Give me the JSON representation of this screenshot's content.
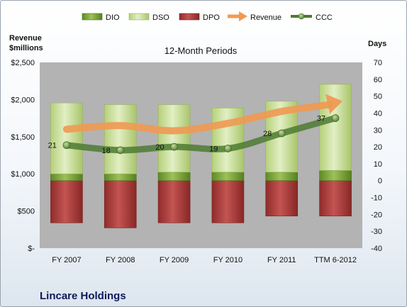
{
  "company": "Lincare Holdings",
  "chart_data": {
    "type": "bar",
    "title": "12-Month Periods",
    "left_axis_label_line1": "Revenue",
    "left_axis_label_line2": "$millions",
    "right_axis_label": "Days",
    "categories": [
      "FY 2007",
      "FY 2008",
      "FY 2009",
      "FY 2010",
      "FY 2011",
      "TTM 6-2012"
    ],
    "left_ticks": [
      "$-",
      "$500",
      "$1,000",
      "$1,500",
      "$2,000",
      "$2,500"
    ],
    "left_ylim": [
      0,
      2500
    ],
    "right_ticks": [
      "-40",
      "-30",
      "-20",
      "-10",
      "0",
      "10",
      "20",
      "30",
      "40",
      "50",
      "60",
      "70"
    ],
    "right_ylim": [
      -40,
      70
    ],
    "legend": [
      "DIO",
      "DSO",
      "DPO",
      "Revenue",
      "CCC"
    ],
    "legend_position": "top",
    "grid": false,
    "colors": {
      "DIO": "#77a33a",
      "DSO": "#c9df98",
      "DPO": "#b2403e",
      "Revenue": "#ef9a54",
      "CCC": "#4d7a32",
      "plot_bg": "#b3b3b3"
    },
    "series": [
      {
        "name": "DIO",
        "axis": "right",
        "values": [
          4,
          4,
          5,
          5,
          5,
          6
        ]
      },
      {
        "name": "DSO",
        "axis": "right",
        "values": [
          42,
          41,
          40,
          38,
          42,
          51
        ]
      },
      {
        "name": "DPO",
        "axis": "right",
        "values": [
          -25,
          -28,
          -25,
          -25,
          -21,
          -21
        ]
      },
      {
        "name": "Revenue",
        "axis": "left",
        "values": [
          1600,
          1650,
          1580,
          1680,
          1840,
          1960
        ]
      },
      {
        "name": "CCC",
        "axis": "right",
        "values": [
          21,
          18,
          20,
          19,
          28,
          37
        ]
      }
    ],
    "ccc_labels": [
      "21",
      "18",
      "20",
      "19",
      "28",
      "37"
    ]
  }
}
